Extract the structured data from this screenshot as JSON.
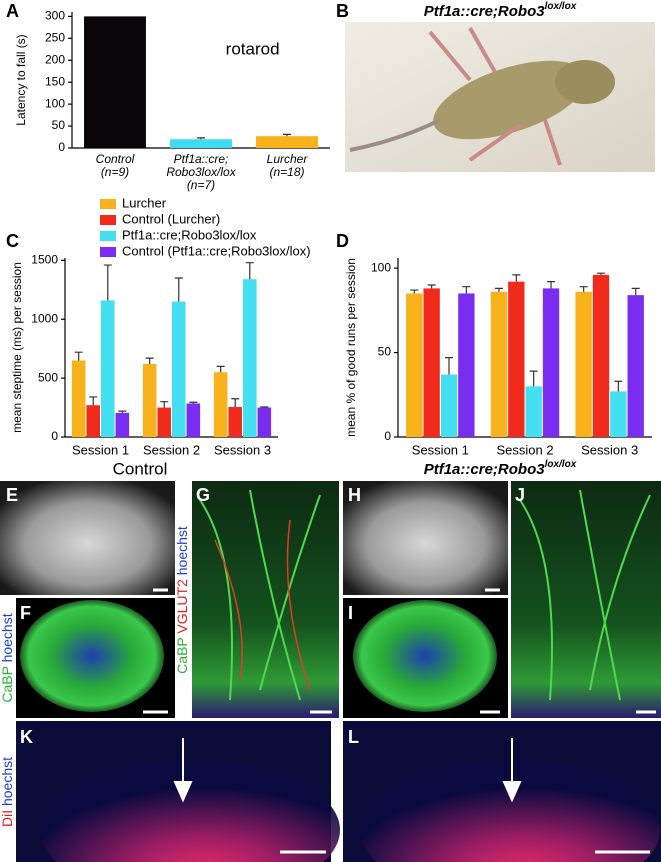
{
  "panels": {
    "letters": [
      "A",
      "B",
      "C",
      "D",
      "E",
      "F",
      "G",
      "H",
      "I",
      "J",
      "K",
      "L"
    ],
    "title_B": {
      "text": "Ptf1a::cre;Robo3",
      "sup": "lox/lox"
    },
    "group_left": "Control",
    "group_right": {
      "text": "Ptf1a::cre;Robo3",
      "sup": "lox/lox"
    },
    "stain_F": [
      "CaBP",
      "hoechst"
    ],
    "stain_G": [
      "CaBP",
      "VGLUT2",
      "hoechst"
    ],
    "stain_K": [
      "DiI",
      "hoechst"
    ]
  },
  "chart_data": [
    {
      "type": "bar",
      "annotation": "rotarod",
      "y_label": "Latency to fall (s)",
      "categories": [
        [
          "Control",
          "(n=9)"
        ],
        [
          "Ptf1a::cre;",
          "Robo3lox/lox",
          "(n=7)"
        ],
        [
          "Lurcher",
          "(n=18)"
        ]
      ],
      "values": [
        300,
        20,
        27
      ],
      "errors": [
        null,
        3,
        4
      ],
      "colors": [
        "#0b0609",
        "#3fdcef",
        "#f7b21c"
      ],
      "ylim": [
        0,
        310
      ],
      "yticks": [
        0,
        50,
        100,
        150,
        200,
        250,
        300
      ]
    },
    {
      "type": "bar",
      "y_label": "mean steptime (ms) per session",
      "categories": [
        "Session 1",
        "Session 2",
        "Session 3"
      ],
      "series": [
        {
          "name": "Lurcher",
          "color": "#f7b21c",
          "values": [
            650,
            620,
            550
          ],
          "errors": [
            70,
            50,
            50
          ]
        },
        {
          "name": "Control (Lurcher)",
          "color": "#f02b1c",
          "values": [
            270,
            250,
            255
          ],
          "errors": [
            70,
            50,
            70
          ]
        },
        {
          "name": "Ptf1a::cre;Robo3lox/lox",
          "color": "#44e0f2",
          "values": [
            1160,
            1150,
            1340
          ],
          "errors": [
            300,
            200,
            140
          ]
        },
        {
          "name": "Control (Ptf1a::cre;Robo3lox/lox)",
          "color": "#7a2cf0",
          "values": [
            205,
            285,
            250
          ],
          "errors": [
            15,
            10,
            5
          ]
        }
      ],
      "ylim": [
        0,
        1520
      ],
      "yticks": [
        0,
        500,
        1000,
        1500
      ]
    },
    {
      "type": "bar",
      "y_label": "mean % of good runs per session",
      "categories": [
        "Session 1",
        "Session 2",
        "Session 3"
      ],
      "series": [
        {
          "color": "#f7b21c",
          "values": [
            85,
            86,
            86
          ],
          "errors": [
            2,
            2,
            3
          ]
        },
        {
          "color": "#f02b1c",
          "values": [
            88,
            92,
            96
          ],
          "errors": [
            2,
            4,
            1
          ]
        },
        {
          "color": "#44e0f2",
          "values": [
            37,
            30,
            27
          ],
          "errors": [
            10,
            9,
            6
          ]
        },
        {
          "color": "#7a2cf0",
          "values": [
            85,
            88,
            84
          ],
          "errors": [
            4,
            4,
            4
          ]
        }
      ],
      "ylim": [
        0,
        106
      ],
      "yticks": [
        0,
        50,
        100
      ]
    }
  ]
}
